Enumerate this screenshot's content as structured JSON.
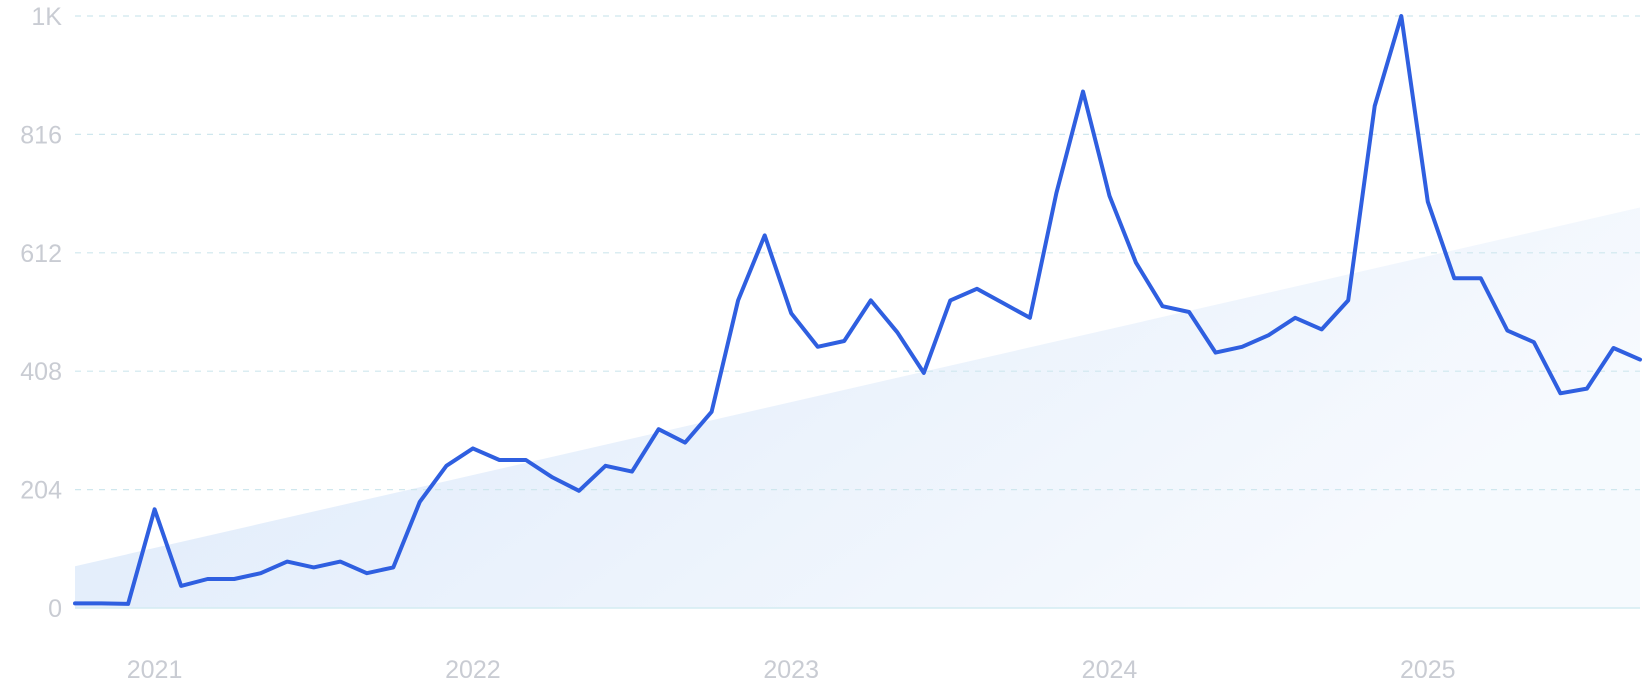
{
  "chart_data": {
    "type": "line",
    "title": "",
    "xlabel": "",
    "ylabel": "",
    "ylim": [
      0,
      1020
    ],
    "yticks": [
      {
        "value": 0,
        "label": "0"
      },
      {
        "value": 204,
        "label": "204"
      },
      {
        "value": 408,
        "label": "408"
      },
      {
        "value": 612,
        "label": "612"
      },
      {
        "value": 816,
        "label": "816"
      },
      {
        "value": 1020,
        "label": "1K"
      }
    ],
    "xticks": [
      {
        "value": "2021-01",
        "label": "2021"
      },
      {
        "value": "2022-01",
        "label": "2022"
      },
      {
        "value": "2023-01",
        "label": "2023"
      },
      {
        "value": "2024-01",
        "label": "2024"
      },
      {
        "value": "2025-01",
        "label": "2025"
      }
    ],
    "xlim": [
      "2020-10",
      "2025-09"
    ],
    "grid": true,
    "colors": {
      "line": "#2f5fe0",
      "trend_fill": "#dce9fa",
      "grid": "#cfe7ee",
      "tick": "#c9ccd3"
    },
    "trend": {
      "start": [
        "2020-10",
        72
      ],
      "end": [
        "2025-09",
        690
      ]
    },
    "series": [
      {
        "x": [
          "2020-10",
          "2020-11",
          "2020-12",
          "2021-01",
          "2021-02",
          "2021-03",
          "2021-04",
          "2021-05",
          "2021-06",
          "2021-07",
          "2021-08",
          "2021-09",
          "2021-10",
          "2021-11",
          "2021-12",
          "2022-01",
          "2022-02",
          "2022-03",
          "2022-04",
          "2022-05",
          "2022-06",
          "2022-07",
          "2022-08",
          "2022-09",
          "2022-10",
          "2022-11",
          "2022-12",
          "2023-01",
          "2023-02",
          "2023-03",
          "2023-04",
          "2023-05",
          "2023-06",
          "2023-07",
          "2023-08",
          "2023-09",
          "2023-10",
          "2023-11",
          "2023-12",
          "2024-01",
          "2024-02",
          "2024-03",
          "2024-04",
          "2024-05",
          "2024-06",
          "2024-07",
          "2024-08",
          "2024-09",
          "2024-10",
          "2024-11",
          "2024-12",
          "2025-01",
          "2025-02",
          "2025-03",
          "2025-04",
          "2025-05",
          "2025-06",
          "2025-07",
          "2025-08",
          "2025-09"
        ],
        "values": [
          8,
          8,
          7,
          170,
          38,
          50,
          50,
          60,
          80,
          70,
          80,
          60,
          70,
          183,
          245,
          275,
          255,
          255,
          225,
          202,
          245,
          235,
          308,
          285,
          338,
          530,
          642,
          508,
          450,
          460,
          530,
          475,
          405,
          530,
          550,
          525,
          500,
          715,
          890,
          710,
          595,
          520,
          510,
          440,
          450,
          470,
          500,
          480,
          530,
          865,
          1020,
          700,
          568,
          568,
          478,
          458,
          370,
          378,
          448,
          428
        ]
      }
    ]
  }
}
